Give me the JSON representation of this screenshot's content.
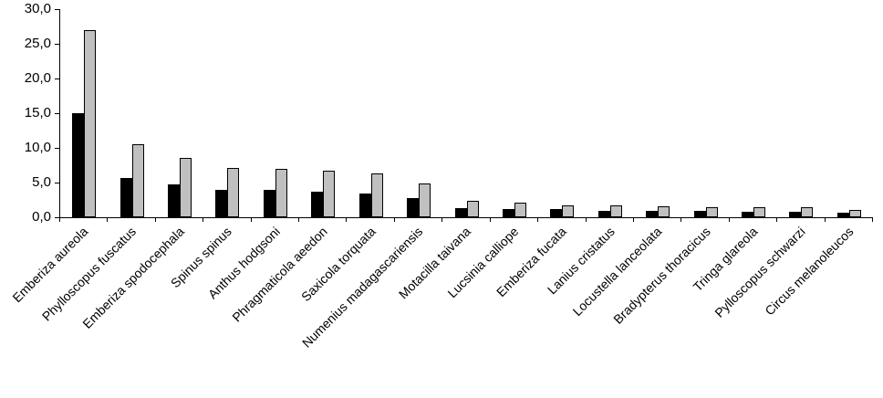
{
  "chart_data": {
    "type": "bar",
    "title": "",
    "xlabel": "",
    "ylabel": "",
    "categories": [
      "Emberiza aureola",
      "Phylloscopus fuscatus",
      "Emberiza spodocephala",
      "Spinus spinus",
      "Anthus hodgsoni",
      "Phragmaticola aeedon",
      "Saxicola torquata",
      "Numenius madagascariensis",
      "Motacilla taivana",
      "Lucsinia calliope",
      "Emberiza fucata",
      "Lanius cristatus",
      "Locustella lanceolata",
      "Bradypterus thoracicus",
      "Tringa glareola",
      "Pylloscopus schwarzi",
      "Circus melanoleucos"
    ],
    "series": [
      {
        "name": "series-1-black",
        "color": "#000000",
        "values": [
          15.0,
          5.7,
          4.7,
          3.9,
          3.9,
          3.7,
          3.4,
          2.8,
          1.3,
          1.2,
          1.2,
          0.9,
          0.9,
          0.9,
          0.8,
          0.8,
          0.7
        ]
      },
      {
        "name": "series-2-gray",
        "color": "#c0c0c0",
        "values": [
          27.0,
          10.5,
          8.6,
          7.1,
          7.0,
          6.7,
          6.3,
          4.9,
          2.4,
          2.1,
          1.7,
          1.7,
          1.6,
          1.5,
          1.4,
          1.4,
          1.1
        ]
      }
    ],
    "ylim": [
      0,
      30
    ],
    "ytick_step": 5,
    "ytick_labels": [
      "0,0",
      "5,0",
      "10,0",
      "15,0",
      "20,0",
      "25,0",
      "30,0"
    ],
    "grid": false,
    "legend": "none",
    "axis_color": "#000000",
    "background_color": "#ffffff"
  }
}
